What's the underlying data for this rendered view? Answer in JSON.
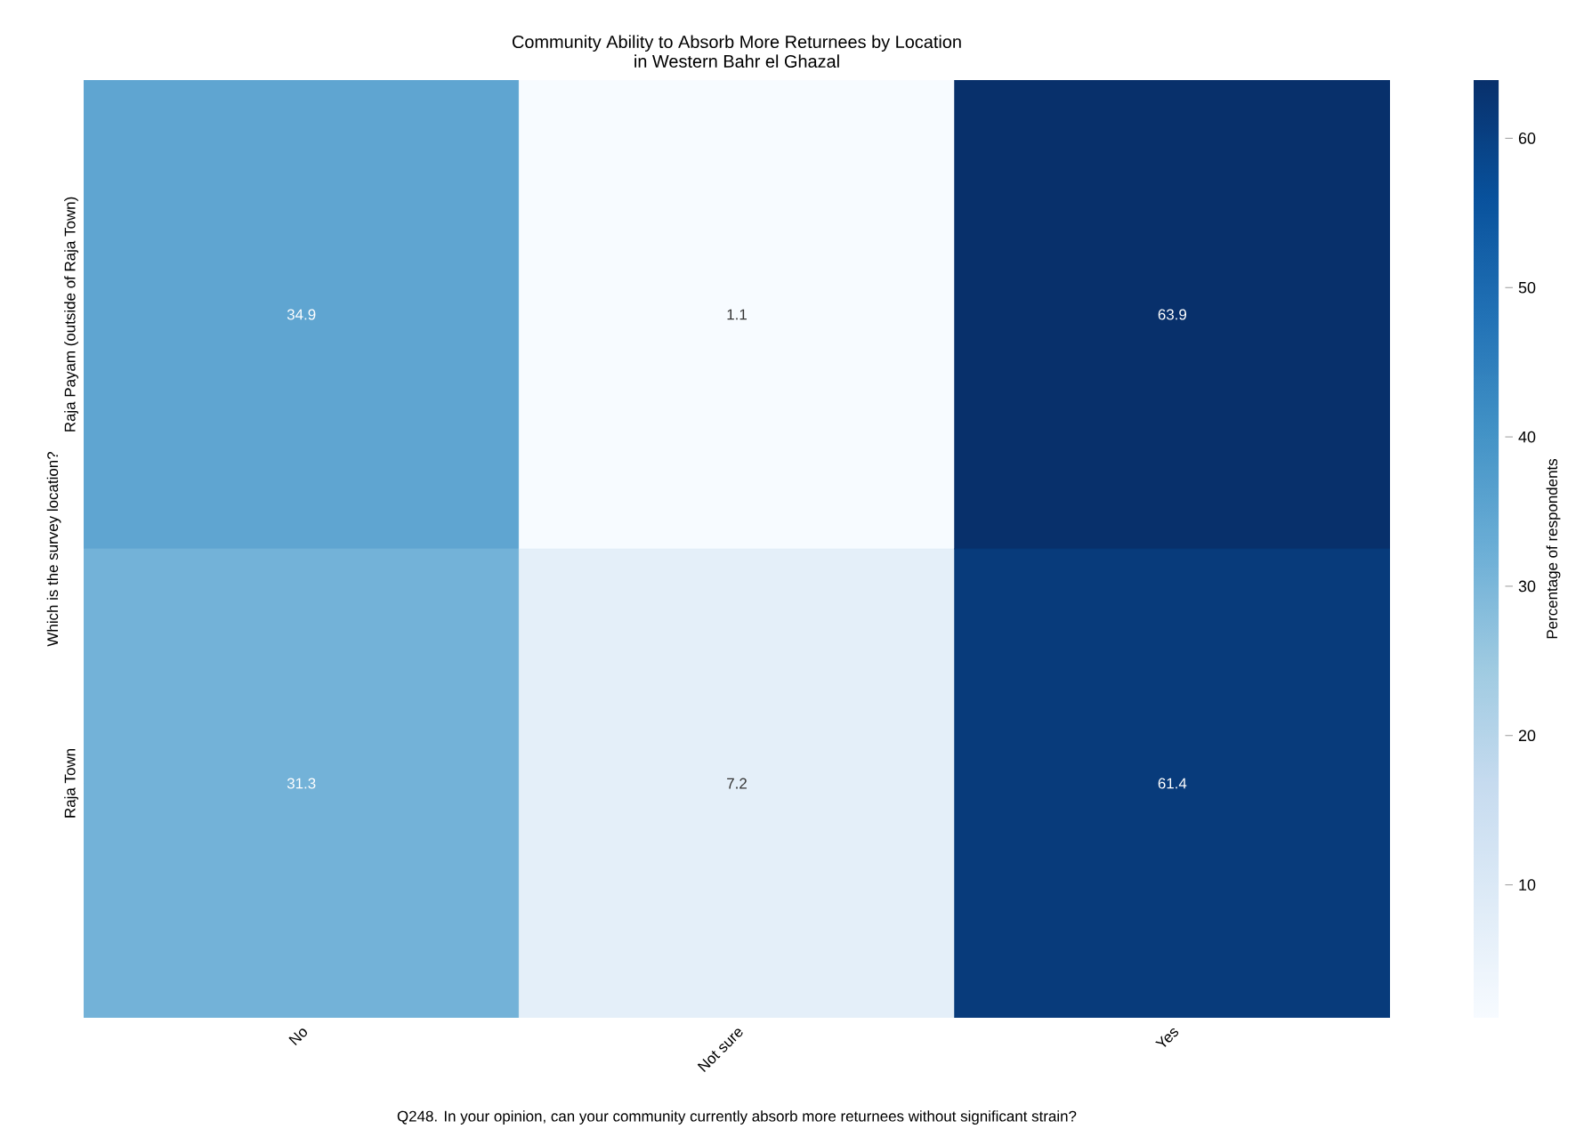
{
  "chart_data": {
    "type": "heatmap",
    "title": "Community Ability to Absorb More Returnees by Location\nin Western Bahr el Ghazal",
    "xlabel": "Q248. In your opinion, can your community currently absorb more returnees without significant strain?",
    "ylabel": "Which is the survey location?",
    "clabel": "Percentage of respondents",
    "categories": [
      "No",
      "Not sure",
      "Yes"
    ],
    "y_categories": [
      "Raja Payam (outside of Raja Town)",
      "Raja Town"
    ],
    "cells": [
      [
        34.9,
        1.1,
        63.9
      ],
      [
        31.3,
        7.2,
        61.4
      ]
    ],
    "clim": [
      1.1,
      63.9
    ],
    "cticks": [
      10,
      20,
      30,
      40,
      50,
      60
    ],
    "data_labels": true
  }
}
